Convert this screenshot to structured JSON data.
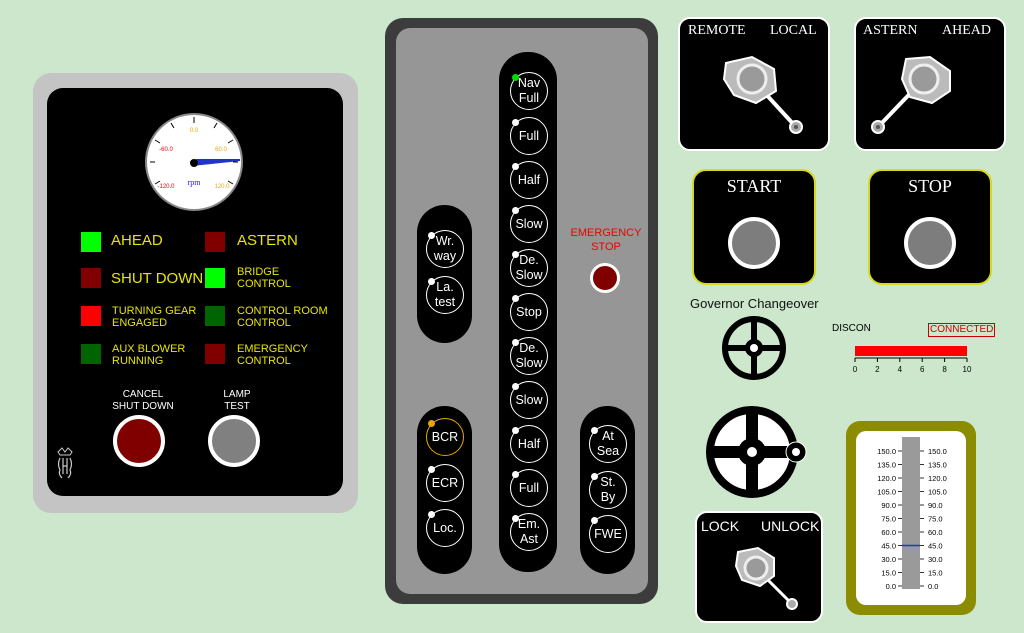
{
  "left_panel": {
    "gauge": {
      "unit": "rpm",
      "ticks": [
        "0.0",
        "-60.0",
        "60.0",
        "-120.0",
        "120.0"
      ],
      "needle_value": 95
    },
    "indicators": [
      {
        "label": "AHEAD",
        "color": "#00ff00"
      },
      {
        "label": "ASTERN",
        "color": "#800000"
      },
      {
        "label": "SHUT DOWN",
        "color": "#800000"
      },
      {
        "label": "BRIDGE\nCONTROL",
        "color": "#00ff00"
      },
      {
        "label": "TURNING GEAR\nENGAGED",
        "color": "#ff0000"
      },
      {
        "label": "CONTROL ROOM\nCONTROL",
        "color": "#006400"
      },
      {
        "label": "AUX BLOWER\nRUNNING",
        "color": "#006400"
      },
      {
        "label": "EMERGENCY\nCONTROL",
        "color": "#800000"
      }
    ],
    "cancel_label": "CANCEL\nSHUT DOWN",
    "lamp_label": "LAMP\nTEST",
    "cancel_color": "#800000",
    "lamp_color": "#808080"
  },
  "center_panel": {
    "left_column": [
      {
        "label": "Wr.\nway"
      },
      {
        "label": "La.\ntest"
      }
    ],
    "location_column": [
      {
        "label": "BCR",
        "active": true
      },
      {
        "label": "ECR"
      },
      {
        "label": "Loc."
      }
    ],
    "telegraph": [
      {
        "label": "Nav\nFull",
        "active": true
      },
      {
        "label": "Full"
      },
      {
        "label": "Half"
      },
      {
        "label": "Slow"
      },
      {
        "label": "De.\nSlow"
      },
      {
        "label": "Stop"
      },
      {
        "label": "De.\nSlow"
      },
      {
        "label": "Slow"
      },
      {
        "label": "Half"
      },
      {
        "label": "Full"
      },
      {
        "label": "Em.\nAst"
      }
    ],
    "mode_column": [
      {
        "label": "At\nSea"
      },
      {
        "label": "St.\nBy"
      },
      {
        "label": "FWE"
      }
    ],
    "emergency_stop_label": "EMERGENCY\nSTOP"
  },
  "switches": {
    "remote_local": {
      "left": "REMOTE",
      "right": "LOCAL"
    },
    "astern_ahead": {
      "left": "ASTERN",
      "right": "AHEAD"
    },
    "lock_unlock": {
      "left": "LOCK",
      "right": "UNLOCK"
    }
  },
  "start_label": "START",
  "stop_label": "STOP",
  "governor": {
    "title": "Governor Changeover",
    "discon_label": "DISCON",
    "connected_label": "CONNECTED",
    "slider_ticks": [
      "0",
      "2",
      "4",
      "6",
      "8",
      "10"
    ],
    "slider_value": 10
  },
  "thermometer": {
    "ticks": [
      "150.0",
      "135.0",
      "120.0",
      "105.0",
      "90.0",
      "75.0",
      "60.0",
      "45.0",
      "30.0",
      "15.0",
      "0.0"
    ],
    "value": 45
  },
  "colors": {
    "accent_yellow": "#e6e600",
    "panel_black": "#000000",
    "emergency_red": "#800000"
  }
}
